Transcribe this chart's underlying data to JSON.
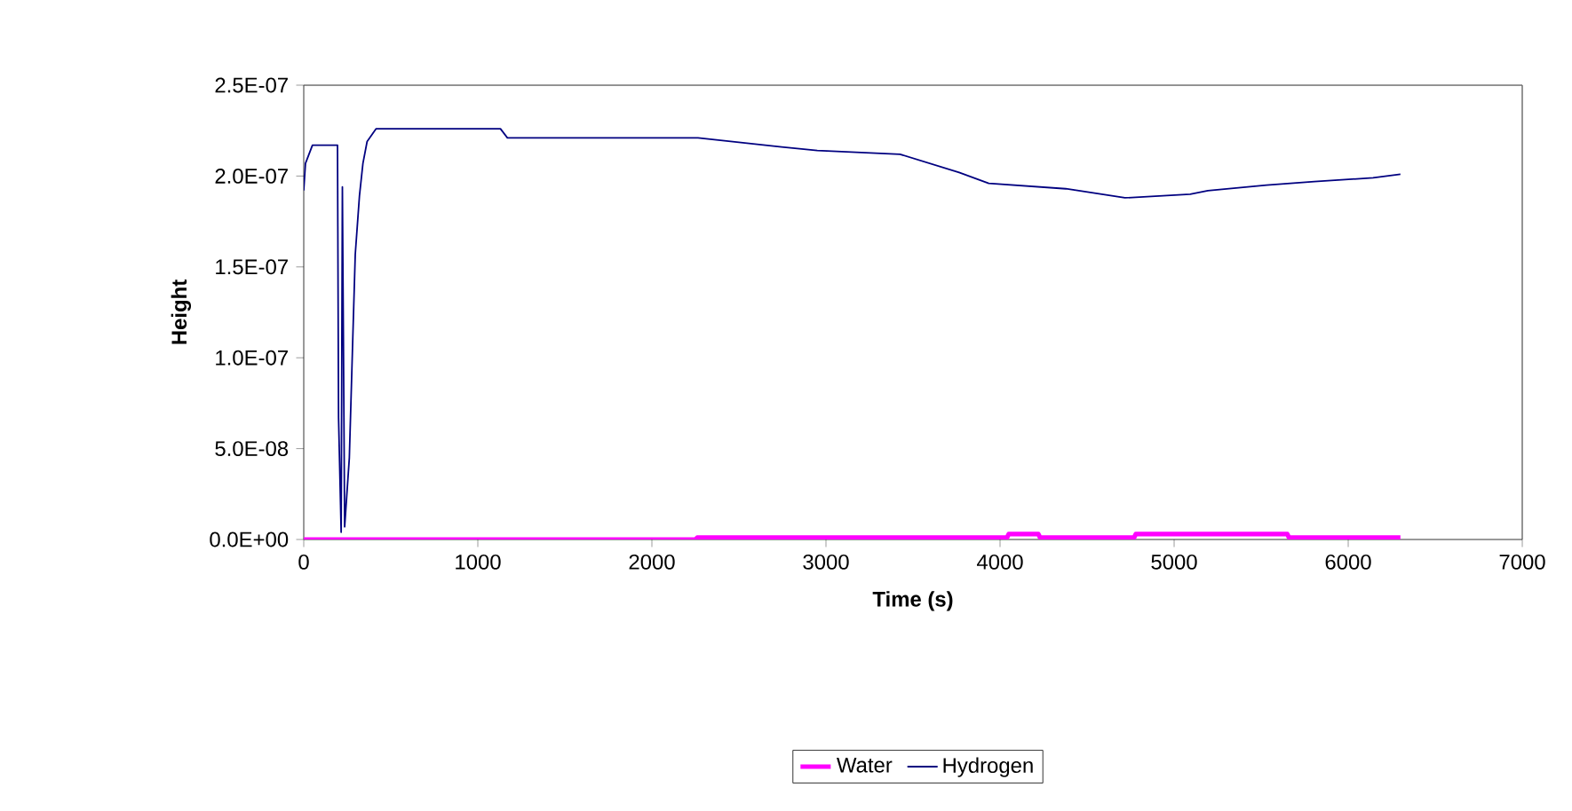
{
  "chart_data": {
    "type": "line",
    "xlabel": "Time (s)",
    "ylabel": "Height",
    "xlim": [
      0,
      7000
    ],
    "xticks": [
      0,
      1000,
      2000,
      3000,
      4000,
      5000,
      6000,
      7000
    ],
    "ylim": [
      0,
      2.5e-07
    ],
    "yticks": [
      {
        "value": 0,
        "label": "0.0E+00"
      },
      {
        "value": 5e-08,
        "label": "5.0E-08"
      },
      {
        "value": 1e-07,
        "label": "1.0E-07"
      },
      {
        "value": 1.5e-07,
        "label": "1.5E-07"
      },
      {
        "value": 2e-07,
        "label": "2.0E-07"
      },
      {
        "value": 2.5e-07,
        "label": "2.5E-07"
      }
    ],
    "legend": "bottom",
    "grid": false,
    "series": [
      {
        "name": "Water",
        "color": "#ff00ff",
        "x": [
          0,
          2250,
          2260,
          4040,
          4050,
          4220,
          4230,
          4770,
          4780,
          5650,
          5660,
          6300
        ],
        "values": [
          0,
          0,
          1e-09,
          1e-09,
          3e-09,
          3e-09,
          1e-09,
          1e-09,
          3e-09,
          3e-09,
          1e-09,
          1e-09
        ]
      },
      {
        "name": "Hydrogen",
        "color": "#000080",
        "x": [
          0,
          10,
          50,
          194,
          200,
          215,
          222,
          235,
          262,
          280,
          296,
          320,
          340,
          364,
          415,
          1130,
          1170,
          2265,
          2745,
          2950,
          3425,
          3595,
          3765,
          3935,
          4378,
          4717,
          5092,
          5194,
          5531,
          5806,
          6143,
          6300
        ],
        "values": [
          1.92e-07,
          2.07e-07,
          2.17e-07,
          2.17e-07,
          6.7e-08,
          4e-09,
          1.94e-07,
          7e-09,
          4.5e-08,
          1.05e-07,
          1.57e-07,
          1.89e-07,
          2.07e-07,
          2.19e-07,
          2.26e-07,
          2.26e-07,
          2.21e-07,
          2.21e-07,
          2.16e-07,
          2.14e-07,
          2.12e-07,
          2.07e-07,
          2.02e-07,
          1.96e-07,
          1.93e-07,
          1.88e-07,
          1.9e-07,
          1.92e-07,
          1.95e-07,
          1.97e-07,
          1.99e-07,
          2.01e-07
        ]
      }
    ]
  }
}
